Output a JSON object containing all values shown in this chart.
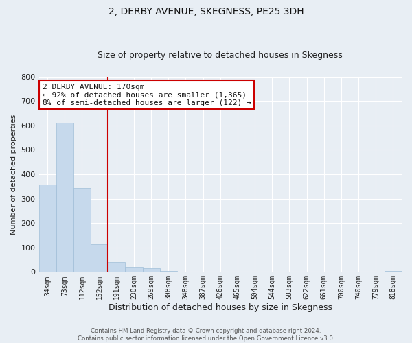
{
  "title": "2, DERBY AVENUE, SKEGNESS, PE25 3DH",
  "subtitle": "Size of property relative to detached houses in Skegness",
  "xlabel": "Distribution of detached houses by size in Skegness",
  "ylabel": "Number of detached properties",
  "bar_labels": [
    "34sqm",
    "73sqm",
    "112sqm",
    "152sqm",
    "191sqm",
    "230sqm",
    "269sqm",
    "308sqm",
    "348sqm",
    "387sqm",
    "426sqm",
    "465sqm",
    "504sqm",
    "544sqm",
    "583sqm",
    "622sqm",
    "661sqm",
    "700sqm",
    "740sqm",
    "779sqm",
    "818sqm"
  ],
  "bar_values": [
    357,
    611,
    343,
    114,
    40,
    22,
    14,
    4,
    0,
    0,
    0,
    0,
    0,
    0,
    0,
    0,
    0,
    0,
    0,
    0,
    4
  ],
  "bar_color": "#c6d9ec",
  "bar_edge_color": "#a0bed8",
  "vline_position": 3.5,
  "vline_color": "#cc0000",
  "annotation_text_line1": "2 DERBY AVENUE: 170sqm",
  "annotation_text_line2": "← 92% of detached houses are smaller (1,365)",
  "annotation_text_line3": "8% of semi-detached houses are larger (122) →",
  "annotation_box_facecolor": "#ffffff",
  "annotation_box_edgecolor": "#cc0000",
  "ylim": [
    0,
    800
  ],
  "yticks": [
    0,
    100,
    200,
    300,
    400,
    500,
    600,
    700,
    800
  ],
  "background_color": "#e8eef4",
  "plot_bg_color": "#e8eef4",
  "grid_color": "#ffffff",
  "title_fontsize": 10,
  "subtitle_fontsize": 9,
  "tick_fontsize": 7,
  "ylabel_fontsize": 8,
  "xlabel_fontsize": 9,
  "footer_line1": "Contains HM Land Registry data © Crown copyright and database right 2024.",
  "footer_line2": "Contains public sector information licensed under the Open Government Licence v3.0."
}
